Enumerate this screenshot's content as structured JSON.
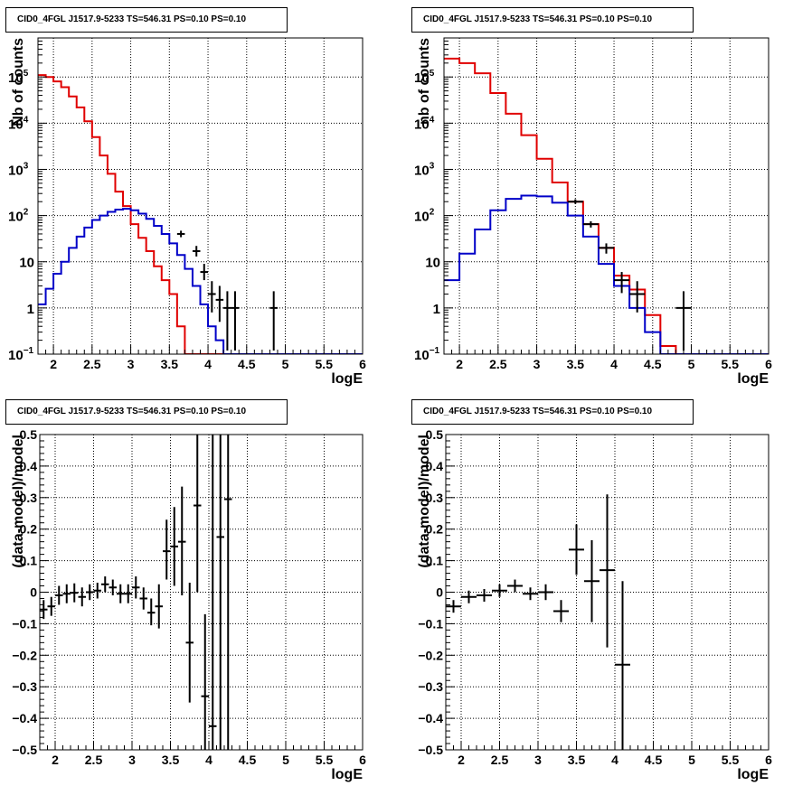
{
  "chart_data": [
    {
      "id": "top-left",
      "type": "histogram",
      "title": "CID0_4FGL J1517.9-5233 TS=546.31 PS=0.10 PS=0.10",
      "xlabel": "logE",
      "ylabel": "Nb of counts",
      "xlim": [
        1.8,
        6.0
      ],
      "ylim": [
        0.1,
        700000
      ],
      "yscale": "log",
      "grid": true,
      "xticks": [
        {
          "v": 2,
          "label": "2"
        },
        {
          "v": 2.5,
          "label": "2.5"
        },
        {
          "v": 3,
          "label": "3"
        },
        {
          "v": 3.5,
          "label": "3.5"
        },
        {
          "v": 4,
          "label": "4"
        },
        {
          "v": 4.5,
          "label": "4.5"
        },
        {
          "v": 5,
          "label": "5"
        },
        {
          "v": 5.5,
          "label": "5.5"
        },
        {
          "v": 6,
          "label": "6"
        }
      ],
      "yticks": [
        {
          "v": 0.1,
          "label": "10",
          "sup": "−1"
        },
        {
          "v": 1,
          "label": "1",
          "sup": ""
        },
        {
          "v": 10,
          "label": "10",
          "sup": ""
        },
        {
          "v": 100,
          "label": "10",
          "sup": "2"
        },
        {
          "v": 1000,
          "label": "10",
          "sup": "3"
        },
        {
          "v": 10000,
          "label": "10",
          "sup": "4"
        },
        {
          "v": 100000,
          "label": "10",
          "sup": "5"
        }
      ],
      "bin_edges": [
        1.8,
        1.9,
        2.0,
        2.1,
        2.2,
        2.3,
        2.4,
        2.5,
        2.6,
        2.7,
        2.8,
        2.9,
        3.0,
        3.1,
        3.2,
        3.3,
        3.4,
        3.5,
        3.6,
        3.7,
        3.8,
        3.9,
        4.0,
        4.1,
        4.2,
        4.3,
        4.4,
        4.5,
        4.6,
        4.7,
        4.8,
        4.9,
        5.0,
        5.1,
        5.2,
        5.3,
        5.4,
        5.5,
        5.6,
        5.7,
        5.8,
        5.9,
        6.0
      ],
      "series": [
        {
          "role": "model-total",
          "color": "#e00000",
          "values": [
            110000,
            100000,
            80000,
            60000,
            38000,
            22000,
            11000,
            5000,
            2000,
            800,
            330,
            160,
            65,
            33,
            17,
            8,
            4,
            2,
            0.4,
            0.1,
            0.1,
            0.1,
            0.1,
            0.1,
            0.1,
            0.1,
            0.1,
            0.1,
            0.1,
            0.1,
            0.1,
            0.1,
            0.1,
            0.1,
            0.1,
            0.1,
            0.1,
            0.1,
            0.1,
            0.1,
            0.1,
            0.1
          ]
        },
        {
          "role": "model-component",
          "color": "#0000c8",
          "values": [
            1.2,
            2.6,
            5.5,
            10,
            20,
            35,
            55,
            80,
            100,
            120,
            135,
            140,
            130,
            110,
            85,
            60,
            40,
            25,
            14,
            7,
            3,
            1.2,
            0.4,
            0.2,
            0.1,
            0.1,
            0.1,
            0.1,
            0.1,
            0.1,
            0.1,
            0.1,
            0.1,
            0.1,
            0.1,
            0.1,
            0.1,
            0.1,
            0.1,
            0.1,
            0.1,
            0.1
          ]
        }
      ],
      "points": [
        {
          "x": 3.65,
          "xerr": 0.05,
          "y": 40,
          "ylo": 34,
          "yhi": 47
        },
        {
          "x": 3.85,
          "xerr": 0.05,
          "y": 17,
          "ylo": 13,
          "yhi": 22
        },
        {
          "x": 3.95,
          "xerr": 0.05,
          "y": 6,
          "ylo": 4,
          "yhi": 9
        },
        {
          "x": 4.05,
          "xerr": 0.05,
          "y": 2,
          "ylo": 0.8,
          "yhi": 3.8
        },
        {
          "x": 4.15,
          "xerr": 0.05,
          "y": 1.5,
          "ylo": 0.5,
          "yhi": 3
        },
        {
          "x": 4.25,
          "xerr": 0.05,
          "y": 1,
          "ylo": 0.12,
          "yhi": 2.3
        },
        {
          "x": 4.35,
          "xerr": 0.05,
          "y": 1,
          "ylo": 0.12,
          "yhi": 2.3
        },
        {
          "x": 4.85,
          "xerr": 0.05,
          "y": 1,
          "ylo": 0.12,
          "yhi": 2.3
        }
      ]
    },
    {
      "id": "top-right",
      "type": "histogram",
      "title": "CID0_4FGL J1517.9-5233 TS=546.31 PS=0.10 PS=0.10",
      "xlabel": "logE",
      "ylabel": "nb of counts",
      "xlim": [
        1.8,
        6.0
      ],
      "ylim": [
        0.1,
        700000
      ],
      "yscale": "log",
      "grid": true,
      "xticks": [
        {
          "v": 2,
          "label": "2"
        },
        {
          "v": 2.5,
          "label": "2.5"
        },
        {
          "v": 3,
          "label": "3"
        },
        {
          "v": 3.5,
          "label": "3.5"
        },
        {
          "v": 4,
          "label": "4"
        },
        {
          "v": 4.5,
          "label": "4.5"
        },
        {
          "v": 5,
          "label": "5"
        },
        {
          "v": 5.5,
          "label": "5.5"
        },
        {
          "v": 6,
          "label": "6"
        }
      ],
      "yticks": [
        {
          "v": 0.1,
          "label": "10",
          "sup": "−1"
        },
        {
          "v": 1,
          "label": "1",
          "sup": ""
        },
        {
          "v": 10,
          "label": "10",
          "sup": ""
        },
        {
          "v": 100,
          "label": "10",
          "sup": "2"
        },
        {
          "v": 1000,
          "label": "10",
          "sup": "3"
        },
        {
          "v": 10000,
          "label": "10",
          "sup": "4"
        },
        {
          "v": 100000,
          "label": "10",
          "sup": "5"
        }
      ],
      "bin_edges": [
        1.8,
        2.0,
        2.2,
        2.4,
        2.6,
        2.8,
        3.0,
        3.2,
        3.4,
        3.6,
        3.8,
        4.0,
        4.2,
        4.4,
        4.6,
        4.8,
        5.0,
        5.2,
        5.4,
        5.6,
        5.8,
        6.0
      ],
      "series": [
        {
          "role": "model-total",
          "color": "#e00000",
          "values": [
            250000,
            200000,
            120000,
            45000,
            16000,
            5500,
            1700,
            520,
            200,
            65,
            20,
            5,
            2.5,
            0.7,
            0.15,
            0.1,
            0.1,
            0.1,
            0.1,
            0.1,
            0.1
          ]
        },
        {
          "role": "model-component",
          "color": "#0000c8",
          "values": [
            4,
            15,
            50,
            130,
            230,
            270,
            260,
            190,
            100,
            35,
            9,
            3,
            1,
            0.3,
            0.1,
            0.1,
            0.1,
            0.1,
            0.1,
            0.1,
            0.1
          ]
        }
      ],
      "points": [
        {
          "x": 3.5,
          "xerr": 0.1,
          "y": 200,
          "ylo": 180,
          "yhi": 225
        },
        {
          "x": 3.7,
          "xerr": 0.1,
          "y": 65,
          "ylo": 55,
          "yhi": 75
        },
        {
          "x": 3.9,
          "xerr": 0.1,
          "y": 20,
          "ylo": 15,
          "yhi": 25
        },
        {
          "x": 4.1,
          "xerr": 0.1,
          "y": 4,
          "ylo": 2.1,
          "yhi": 6
        },
        {
          "x": 4.3,
          "xerr": 0.1,
          "y": 2,
          "ylo": 0.8,
          "yhi": 3.8
        },
        {
          "x": 4.9,
          "xerr": 0.1,
          "y": 1,
          "ylo": 0.12,
          "yhi": 2.3
        }
      ]
    },
    {
      "id": "bottom-left",
      "type": "scatter-errorbar",
      "title": "CID0_4FGL J1517.9-5233 TS=546.31 PS=0.10 PS=0.10",
      "xlabel": "logE",
      "ylabel": "(data-model)/model",
      "xlim": [
        1.8,
        6.0
      ],
      "ylim": [
        -0.5,
        0.5
      ],
      "yscale": "linear",
      "grid": true,
      "xticks": [
        {
          "v": 2,
          "label": "2"
        },
        {
          "v": 2.5,
          "label": "2.5"
        },
        {
          "v": 3,
          "label": "3"
        },
        {
          "v": 3.5,
          "label": "3.5"
        },
        {
          "v": 4,
          "label": "4"
        },
        {
          "v": 4.5,
          "label": "4.5"
        },
        {
          "v": 5,
          "label": "5"
        },
        {
          "v": 5.5,
          "label": "5.5"
        },
        {
          "v": 6,
          "label": "6"
        }
      ],
      "yticks": [
        {
          "v": -0.5,
          "label": "−0.5"
        },
        {
          "v": -0.4,
          "label": "−0.4"
        },
        {
          "v": -0.3,
          "label": "−0.3"
        },
        {
          "v": -0.2,
          "label": "−0.2"
        },
        {
          "v": -0.1,
          "label": "−0.1"
        },
        {
          "v": 0,
          "label": "0"
        },
        {
          "v": 0.1,
          "label": "0.1"
        },
        {
          "v": 0.2,
          "label": "0.2"
        },
        {
          "v": 0.3,
          "label": "0.3"
        },
        {
          "v": 0.4,
          "label": "0.4"
        },
        {
          "v": 0.5,
          "label": "0.5"
        }
      ],
      "points": [
        {
          "x": 1.85,
          "xerr": 0.05,
          "y": -0.055,
          "ylo": -0.085,
          "yhi": -0.025
        },
        {
          "x": 1.95,
          "xerr": 0.05,
          "y": -0.045,
          "ylo": -0.075,
          "yhi": -0.015
        },
        {
          "x": 2.05,
          "xerr": 0.05,
          "y": -0.01,
          "ylo": -0.04,
          "yhi": 0.02
        },
        {
          "x": 2.15,
          "xerr": 0.05,
          "y": -0.005,
          "ylo": -0.035,
          "yhi": 0.025
        },
        {
          "x": 2.25,
          "xerr": 0.05,
          "y": -0.002,
          "ylo": -0.032,
          "yhi": 0.028
        },
        {
          "x": 2.35,
          "xerr": 0.05,
          "y": -0.015,
          "ylo": -0.045,
          "yhi": 0.015
        },
        {
          "x": 2.45,
          "xerr": 0.05,
          "y": 0.0,
          "ylo": -0.025,
          "yhi": 0.025
        },
        {
          "x": 2.55,
          "xerr": 0.05,
          "y": 0.005,
          "ylo": -0.02,
          "yhi": 0.03
        },
        {
          "x": 2.65,
          "xerr": 0.05,
          "y": 0.025,
          "ylo": 0.0,
          "yhi": 0.05
        },
        {
          "x": 2.75,
          "xerr": 0.05,
          "y": 0.015,
          "ylo": -0.01,
          "yhi": 0.04
        },
        {
          "x": 2.85,
          "xerr": 0.05,
          "y": -0.005,
          "ylo": -0.035,
          "yhi": 0.025
        },
        {
          "x": 2.95,
          "xerr": 0.05,
          "y": -0.005,
          "ylo": -0.035,
          "yhi": 0.025
        },
        {
          "x": 3.05,
          "xerr": 0.05,
          "y": 0.015,
          "ylo": -0.02,
          "yhi": 0.05
        },
        {
          "x": 3.15,
          "xerr": 0.05,
          "y": -0.02,
          "ylo": -0.055,
          "yhi": 0.015
        },
        {
          "x": 3.25,
          "xerr": 0.05,
          "y": -0.065,
          "ylo": -0.105,
          "yhi": -0.02
        },
        {
          "x": 3.35,
          "xerr": 0.05,
          "y": -0.045,
          "ylo": -0.115,
          "yhi": 0.025
        },
        {
          "x": 3.45,
          "xerr": 0.05,
          "y": 0.13,
          "ylo": 0.04,
          "yhi": 0.23
        },
        {
          "x": 3.55,
          "xerr": 0.05,
          "y": 0.145,
          "ylo": 0.02,
          "yhi": 0.27
        },
        {
          "x": 3.65,
          "xerr": 0.05,
          "y": 0.16,
          "ylo": -0.01,
          "yhi": 0.335
        },
        {
          "x": 3.75,
          "xerr": 0.05,
          "y": -0.16,
          "ylo": -0.35,
          "yhi": 0.03
        },
        {
          "x": 3.85,
          "xerr": 0.05,
          "y": 0.275,
          "ylo": 0.0,
          "yhi": 0.5
        },
        {
          "x": 3.95,
          "xerr": 0.05,
          "y": -0.33,
          "ylo": -0.5,
          "yhi": -0.07
        },
        {
          "x": 4.05,
          "xerr": 0.05,
          "y": -0.425,
          "ylo": -0.5,
          "yhi": 0.5
        },
        {
          "x": 4.15,
          "xerr": 0.05,
          "y": 0.175,
          "ylo": -0.5,
          "yhi": 0.5
        },
        {
          "x": 4.25,
          "xerr": 0.05,
          "y": 0.295,
          "ylo": -0.5,
          "yhi": 0.5
        }
      ]
    },
    {
      "id": "bottom-right",
      "type": "scatter-errorbar",
      "title": "CID0_4FGL J1517.9-5233 TS=546.31 PS=0.10 PS=0.10",
      "xlabel": "logE",
      "ylabel": "(data-model)/model",
      "xlim": [
        1.8,
        6.0
      ],
      "ylim": [
        -0.5,
        0.5
      ],
      "yscale": "linear",
      "grid": true,
      "xticks": [
        {
          "v": 2,
          "label": "2"
        },
        {
          "v": 2.5,
          "label": "2.5"
        },
        {
          "v": 3,
          "label": "3"
        },
        {
          "v": 3.5,
          "label": "3.5"
        },
        {
          "v": 4,
          "label": "4"
        },
        {
          "v": 4.5,
          "label": "4.5"
        },
        {
          "v": 5,
          "label": "5"
        },
        {
          "v": 5.5,
          "label": "5.5"
        },
        {
          "v": 6,
          "label": "6"
        }
      ],
      "yticks": [
        {
          "v": -0.5,
          "label": "−0.5"
        },
        {
          "v": -0.4,
          "label": "−0.4"
        },
        {
          "v": -0.3,
          "label": "−0.3"
        },
        {
          "v": -0.2,
          "label": "−0.2"
        },
        {
          "v": -0.1,
          "label": "−0.1"
        },
        {
          "v": 0,
          "label": "0"
        },
        {
          "v": 0.1,
          "label": "0.1"
        },
        {
          "v": 0.2,
          "label": "0.2"
        },
        {
          "v": 0.3,
          "label": "0.3"
        },
        {
          "v": 0.4,
          "label": "0.4"
        },
        {
          "v": 0.5,
          "label": "0.5"
        }
      ],
      "points": [
        {
          "x": 1.9,
          "xerr": 0.1,
          "y": -0.045,
          "ylo": -0.065,
          "yhi": -0.025
        },
        {
          "x": 2.1,
          "xerr": 0.1,
          "y": -0.015,
          "ylo": -0.035,
          "yhi": 0.005
        },
        {
          "x": 2.3,
          "xerr": 0.1,
          "y": -0.01,
          "ylo": -0.03,
          "yhi": 0.01
        },
        {
          "x": 2.5,
          "xerr": 0.1,
          "y": 0.005,
          "ylo": -0.015,
          "yhi": 0.025
        },
        {
          "x": 2.7,
          "xerr": 0.1,
          "y": 0.02,
          "ylo": 0.0,
          "yhi": 0.04
        },
        {
          "x": 2.9,
          "xerr": 0.1,
          "y": -0.005,
          "ylo": -0.025,
          "yhi": 0.015
        },
        {
          "x": 3.1,
          "xerr": 0.1,
          "y": 0.0,
          "ylo": -0.025,
          "yhi": 0.025
        },
        {
          "x": 3.3,
          "xerr": 0.1,
          "y": -0.06,
          "ylo": -0.095,
          "yhi": -0.025
        },
        {
          "x": 3.5,
          "xerr": 0.1,
          "y": 0.135,
          "ylo": 0.055,
          "yhi": 0.215
        },
        {
          "x": 3.7,
          "xerr": 0.1,
          "y": 0.035,
          "ylo": -0.095,
          "yhi": 0.165
        },
        {
          "x": 3.9,
          "xerr": 0.1,
          "y": 0.07,
          "ylo": -0.175,
          "yhi": 0.31
        },
        {
          "x": 4.1,
          "xerr": 0.1,
          "y": -0.23,
          "ylo": -0.5,
          "yhi": 0.035
        }
      ]
    }
  ]
}
